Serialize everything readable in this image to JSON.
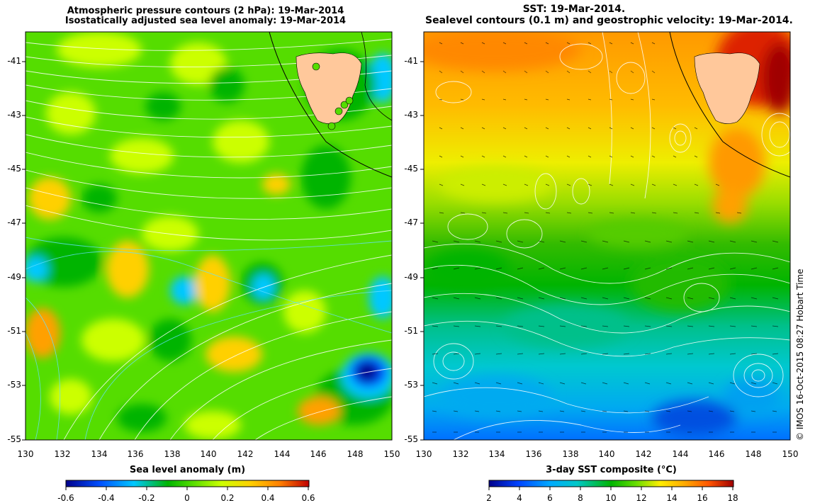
{
  "left_panel": {
    "title_line1": "Atmospheric pressure contours (2 hPa): 19-Mar-2014",
    "title_line2": "Isostatically adjusted sea level anomaly: 19-Mar-2014",
    "colorbar_label": "Sea level anomaly (m)",
    "colorbar_ticks": [
      "-0.6",
      "-0.4",
      "-0.2",
      "0",
      "0.2",
      "0.4",
      "0.6"
    ],
    "colors": [
      "#00008b",
      "#0050ff",
      "#00c8ff",
      "#00b400",
      "#55dd00",
      "#ccff00",
      "#ffd000",
      "#ff8000",
      "#c00000"
    ]
  },
  "right_panel": {
    "title_line1": "SST: 19-Mar-2014.",
    "title_line2": "Sealevel contours (0.1 m) and geostrophic velocity: 19-Mar-2014.",
    "colorbar_label": "3-day SST composite (°C)",
    "colorbar_ticks": [
      "2",
      "4",
      "6",
      "8",
      "10",
      "12",
      "14",
      "16",
      "18"
    ],
    "colors": [
      "#00008b",
      "#0044ff",
      "#00aaff",
      "#00c8c8",
      "#00b400",
      "#66dd00",
      "#ffee00",
      "#ffaa00",
      "#ff5500",
      "#a00000"
    ]
  },
  "latitude_ticks": [
    "-41",
    "-43",
    "-45",
    "-47",
    "-49",
    "-51",
    "-53",
    "-55"
  ],
  "longitude_ticks": [
    "130",
    "132",
    "134",
    "136",
    "138",
    "140",
    "142",
    "144",
    "146",
    "148",
    "150"
  ],
  "copyright": "© IMOS 16-Oct-2015 08:27 Hobart Time",
  "land_color": "#ffc89b"
}
